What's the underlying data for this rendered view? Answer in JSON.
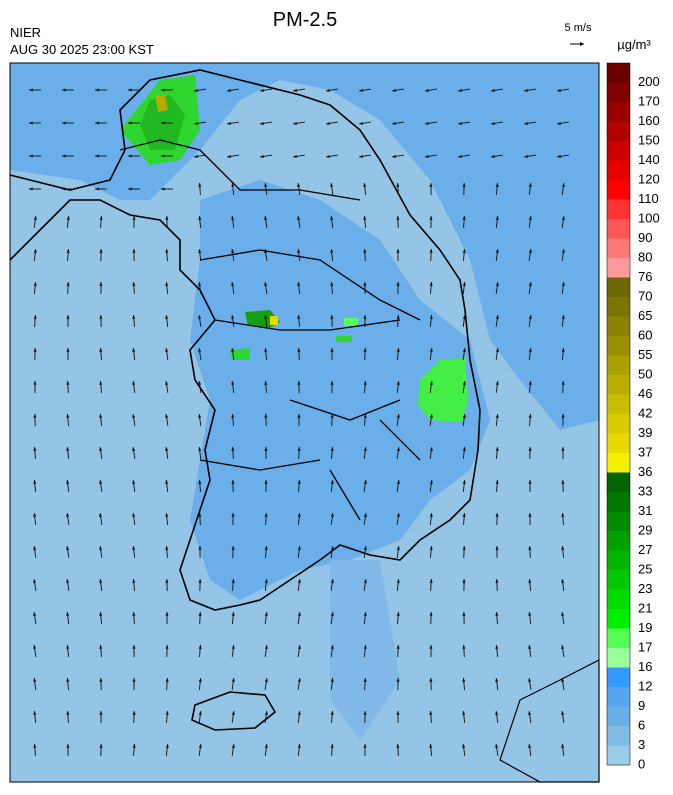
{
  "header": {
    "title": "PM-2.5",
    "agency": "NIER",
    "datetime": "AUG 30 2025 23:00 KST",
    "wind_scale": "5 m/s",
    "unit": "µg/m³"
  },
  "legend": {
    "levels": [
      200,
      170,
      160,
      150,
      140,
      120,
      110,
      100,
      90,
      80,
      76,
      70,
      65,
      60,
      55,
      50,
      46,
      42,
      39,
      37,
      36,
      33,
      31,
      29,
      27,
      25,
      23,
      21,
      19,
      17,
      16,
      12,
      9,
      6,
      3,
      0
    ],
    "colors": [
      "#6b0000",
      "#800000",
      "#990000",
      "#b30000",
      "#cc0000",
      "#e60000",
      "#ff0000",
      "#ff3333",
      "#ff5555",
      "#ff7777",
      "#ff9999",
      "#6e6600",
      "#7d7300",
      "#8c8200",
      "#9b9000",
      "#aaa000",
      "#b9ae00",
      "#c8bd00",
      "#d7cc00",
      "#e6da00",
      "#f5f000",
      "#006400",
      "#007800",
      "#008c00",
      "#00a000",
      "#00b400",
      "#00c800",
      "#00dc00",
      "#00f000",
      "#55ff55",
      "#99ff99",
      "#3399ff",
      "#55a5f0",
      "#6aaee8",
      "#80bbe6",
      "#99cce6"
    ]
  }
}
